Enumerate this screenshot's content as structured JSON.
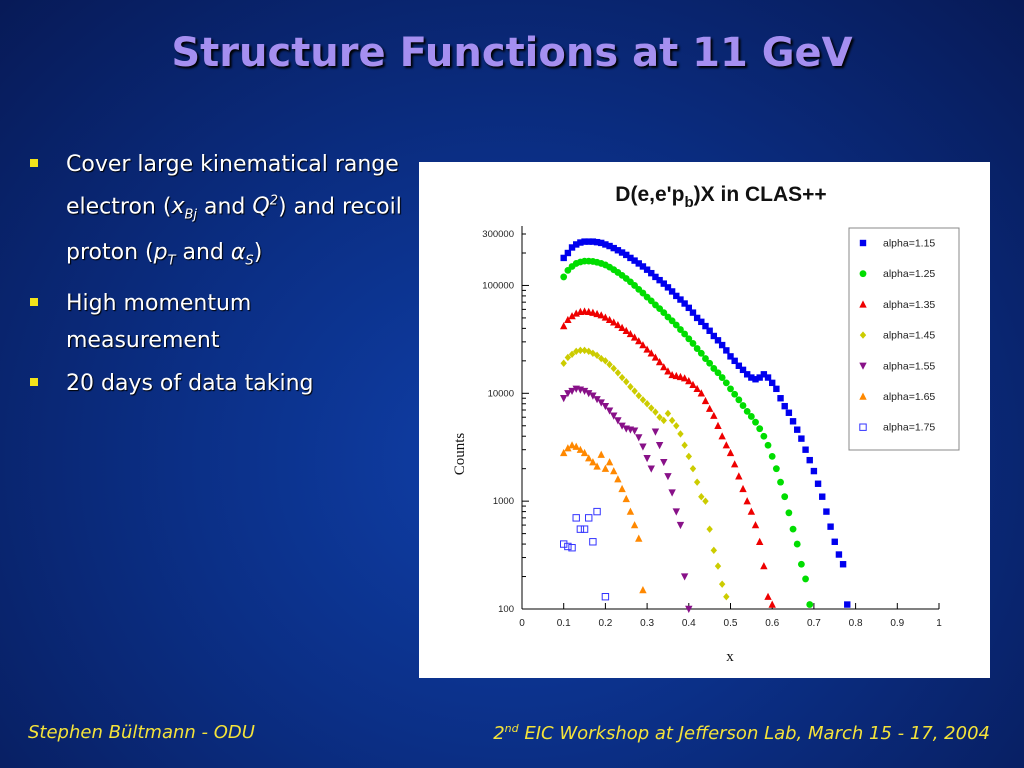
{
  "slide": {
    "title": "Structure Functions at 11 GeV",
    "bullets": {
      "b1_prefix": "Cover large kinematical range electron (",
      "b1_x": "x",
      "b1_xsub": "Bj",
      "b1_and1": " and ",
      "b1_q": "Q",
      "b1_qsup": "2",
      "b1_mid": ") and recoil proton (",
      "b1_p": "p",
      "b1_psub": "T",
      "b1_and2": " and ",
      "b1_alpha": "α",
      "b1_alphasub": "S",
      "b1_end": ")",
      "b2": "High momentum measurement",
      "b3": "20 days of data taking"
    },
    "footer_left": "Stephen Bültmann - ODU",
    "footer_right_num": "2",
    "footer_right_sup": "nd",
    "footer_right_text": " EIC Workshop at Jefferson Lab, March 15 - 17, 2004"
  },
  "chart_data": {
    "type": "scatter",
    "title": "D(e,e'p_b)X in CLAS++",
    "title_main": "D(e,e'p",
    "title_sub": "b",
    "title_end": ")X in CLAS++",
    "xlabel": "x",
    "ylabel": "Counts",
    "xlim": [
      0,
      1
    ],
    "ylim": [
      100,
      300000
    ],
    "yscale": "log",
    "xticks": [
      "0",
      "0.1",
      "0.2",
      "0.3",
      "0.4",
      "0.5",
      "0.6",
      "0.7",
      "0.8",
      "0.9",
      "1"
    ],
    "yticks": [
      {
        "value": 300000,
        "label": "300000"
      },
      {
        "value": 100000,
        "label": "100000"
      },
      {
        "value": 10000,
        "label": "10000"
      },
      {
        "value": 1000,
        "label": "1000"
      },
      {
        "value": 100,
        "label": "100"
      }
    ],
    "legend_position": "top-right",
    "series": [
      {
        "name": "alpha=1.15",
        "color": "#0000ee",
        "marker": "square",
        "x": [
          0.1,
          0.11,
          0.12,
          0.13,
          0.14,
          0.15,
          0.16,
          0.17,
          0.18,
          0.19,
          0.2,
          0.21,
          0.22,
          0.23,
          0.24,
          0.25,
          0.26,
          0.27,
          0.28,
          0.29,
          0.3,
          0.31,
          0.32,
          0.33,
          0.34,
          0.35,
          0.36,
          0.37,
          0.38,
          0.39,
          0.4,
          0.41,
          0.42,
          0.43,
          0.44,
          0.45,
          0.46,
          0.47,
          0.48,
          0.49,
          0.5,
          0.51,
          0.52,
          0.53,
          0.54,
          0.55,
          0.56,
          0.57,
          0.58,
          0.59,
          0.6,
          0.61,
          0.62,
          0.63,
          0.64,
          0.65,
          0.66,
          0.67,
          0.68,
          0.69,
          0.7,
          0.71,
          0.72,
          0.73,
          0.74,
          0.75,
          0.76,
          0.77,
          0.78
        ],
        "y": [
          180000,
          200000,
          225000,
          240000,
          250000,
          255000,
          255000,
          255000,
          252000,
          248000,
          240000,
          232000,
          222000,
          212000,
          202000,
          192000,
          180000,
          170000,
          160000,
          150000,
          140000,
          130000,
          120000,
          112000,
          104000,
          96000,
          88000,
          80000,
          74000,
          68000,
          62000,
          56000,
          50000,
          46000,
          42000,
          38000,
          34000,
          31000,
          28000,
          25000,
          22000,
          20000,
          18000,
          16500,
          15000,
          14000,
          13500,
          14000,
          15000,
          14000,
          12500,
          11000,
          9000,
          7600,
          6600,
          5500,
          4600,
          3800,
          3000,
          2400,
          1900,
          1450,
          1100,
          800,
          580,
          420,
          320,
          260,
          110
        ]
      },
      {
        "name": "alpha=1.25",
        "color": "#00dd00",
        "marker": "circle",
        "x": [
          0.1,
          0.11,
          0.12,
          0.13,
          0.14,
          0.15,
          0.16,
          0.17,
          0.18,
          0.19,
          0.2,
          0.21,
          0.22,
          0.23,
          0.24,
          0.25,
          0.26,
          0.27,
          0.28,
          0.29,
          0.3,
          0.31,
          0.32,
          0.33,
          0.34,
          0.35,
          0.36,
          0.37,
          0.38,
          0.39,
          0.4,
          0.41,
          0.42,
          0.43,
          0.44,
          0.45,
          0.46,
          0.47,
          0.48,
          0.49,
          0.5,
          0.51,
          0.52,
          0.53,
          0.54,
          0.55,
          0.56,
          0.57,
          0.58,
          0.59,
          0.6,
          0.61,
          0.62,
          0.63,
          0.64,
          0.65,
          0.66,
          0.67,
          0.68,
          0.69
        ],
        "y": [
          120000,
          138000,
          150000,
          160000,
          165000,
          168000,
          168000,
          167000,
          164000,
          160000,
          155000,
          148000,
          140000,
          132000,
          124000,
          116000,
          108000,
          100000,
          92000,
          85000,
          78000,
          72000,
          66000,
          61000,
          56000,
          51000,
          47000,
          43000,
          39000,
          35500,
          32000,
          29000,
          26000,
          23500,
          21000,
          19000,
          17000,
          15500,
          14000,
          12500,
          11000,
          9800,
          8700,
          7700,
          6800,
          6100,
          5400,
          4700,
          4000,
          3300,
          2600,
          2000,
          1500,
          1100,
          780,
          550,
          400,
          260,
          190,
          110
        ]
      },
      {
        "name": "alpha=1.35",
        "color": "#ee0000",
        "marker": "triangle-up",
        "x": [
          0.1,
          0.11,
          0.12,
          0.13,
          0.14,
          0.15,
          0.16,
          0.17,
          0.18,
          0.19,
          0.2,
          0.21,
          0.22,
          0.23,
          0.24,
          0.25,
          0.26,
          0.27,
          0.28,
          0.29,
          0.3,
          0.31,
          0.32,
          0.33,
          0.34,
          0.35,
          0.36,
          0.37,
          0.38,
          0.39,
          0.4,
          0.41,
          0.42,
          0.43,
          0.44,
          0.45,
          0.46,
          0.47,
          0.48,
          0.49,
          0.5,
          0.51,
          0.52,
          0.53,
          0.54,
          0.55,
          0.56,
          0.57,
          0.58,
          0.59,
          0.6
        ],
        "y": [
          42000,
          48000,
          52000,
          55000,
          57000,
          57500,
          57000,
          56000,
          54500,
          53000,
          50500,
          48000,
          45500,
          43000,
          40500,
          38000,
          35500,
          33000,
          30500,
          28000,
          25500,
          23500,
          21500,
          19500,
          17500,
          16000,
          14800,
          14500,
          14200,
          13800,
          13000,
          12000,
          11000,
          10000,
          8500,
          7200,
          6200,
          5000,
          4000,
          3300,
          2800,
          2200,
          1700,
          1300,
          1000,
          800,
          600,
          420,
          250,
          130,
          110
        ]
      },
      {
        "name": "alpha=1.45",
        "color": "#cccc00",
        "marker": "diamond",
        "x": [
          0.1,
          0.11,
          0.12,
          0.13,
          0.14,
          0.15,
          0.16,
          0.17,
          0.18,
          0.19,
          0.2,
          0.21,
          0.22,
          0.23,
          0.24,
          0.25,
          0.26,
          0.27,
          0.28,
          0.29,
          0.3,
          0.31,
          0.32,
          0.33,
          0.34,
          0.35,
          0.36,
          0.37,
          0.38,
          0.39,
          0.4,
          0.41,
          0.42,
          0.43,
          0.44,
          0.45,
          0.46,
          0.47,
          0.48,
          0.49
        ],
        "y": [
          19000,
          21500,
          23000,
          24500,
          25000,
          25000,
          24500,
          23500,
          22500,
          21000,
          20000,
          18500,
          17000,
          15500,
          14000,
          12800,
          11500,
          10500,
          9500,
          8700,
          8000,
          7300,
          6700,
          6000,
          5600,
          6500,
          5600,
          5000,
          4200,
          3300,
          2600,
          2000,
          1500,
          1100,
          1000,
          550,
          350,
          250,
          170,
          130
        ]
      },
      {
        "name": "alpha=1.55",
        "color": "#881188",
        "marker": "triangle-down",
        "x": [
          0.1,
          0.11,
          0.12,
          0.13,
          0.14,
          0.15,
          0.16,
          0.17,
          0.18,
          0.19,
          0.2,
          0.21,
          0.22,
          0.23,
          0.24,
          0.25,
          0.26,
          0.27,
          0.28,
          0.29,
          0.3,
          0.31,
          0.32,
          0.33,
          0.34,
          0.35,
          0.36,
          0.37,
          0.38,
          0.39,
          0.4
        ],
        "y": [
          9000,
          10000,
          10500,
          11000,
          10800,
          10500,
          10000,
          9500,
          8800,
          8200,
          7600,
          6900,
          6200,
          5600,
          5000,
          4700,
          4600,
          4500,
          3900,
          3200,
          2500,
          2000,
          4400,
          3300,
          2300,
          1700,
          1200,
          800,
          600,
          200,
          100
        ]
      },
      {
        "name": "alpha=1.65",
        "color": "#ff8800",
        "marker": "triangle-up",
        "x": [
          0.1,
          0.11,
          0.12,
          0.13,
          0.14,
          0.15,
          0.16,
          0.17,
          0.18,
          0.19,
          0.2,
          0.21,
          0.22,
          0.23,
          0.24,
          0.25,
          0.26,
          0.27,
          0.28,
          0.29
        ],
        "y": [
          2800,
          3100,
          3300,
          3200,
          3000,
          2800,
          2500,
          2300,
          2100,
          2700,
          2000,
          2300,
          1900,
          1600,
          1300,
          1050,
          800,
          600,
          450,
          150
        ]
      },
      {
        "name": "alpha=1.75",
        "color": "#3333ff",
        "marker": "open-square",
        "x": [
          0.1,
          0.11,
          0.12,
          0.13,
          0.14,
          0.15,
          0.16,
          0.17,
          0.18,
          0.2
        ],
        "y": [
          400,
          380,
          370,
          700,
          550,
          550,
          700,
          420,
          800,
          130
        ]
      }
    ]
  }
}
